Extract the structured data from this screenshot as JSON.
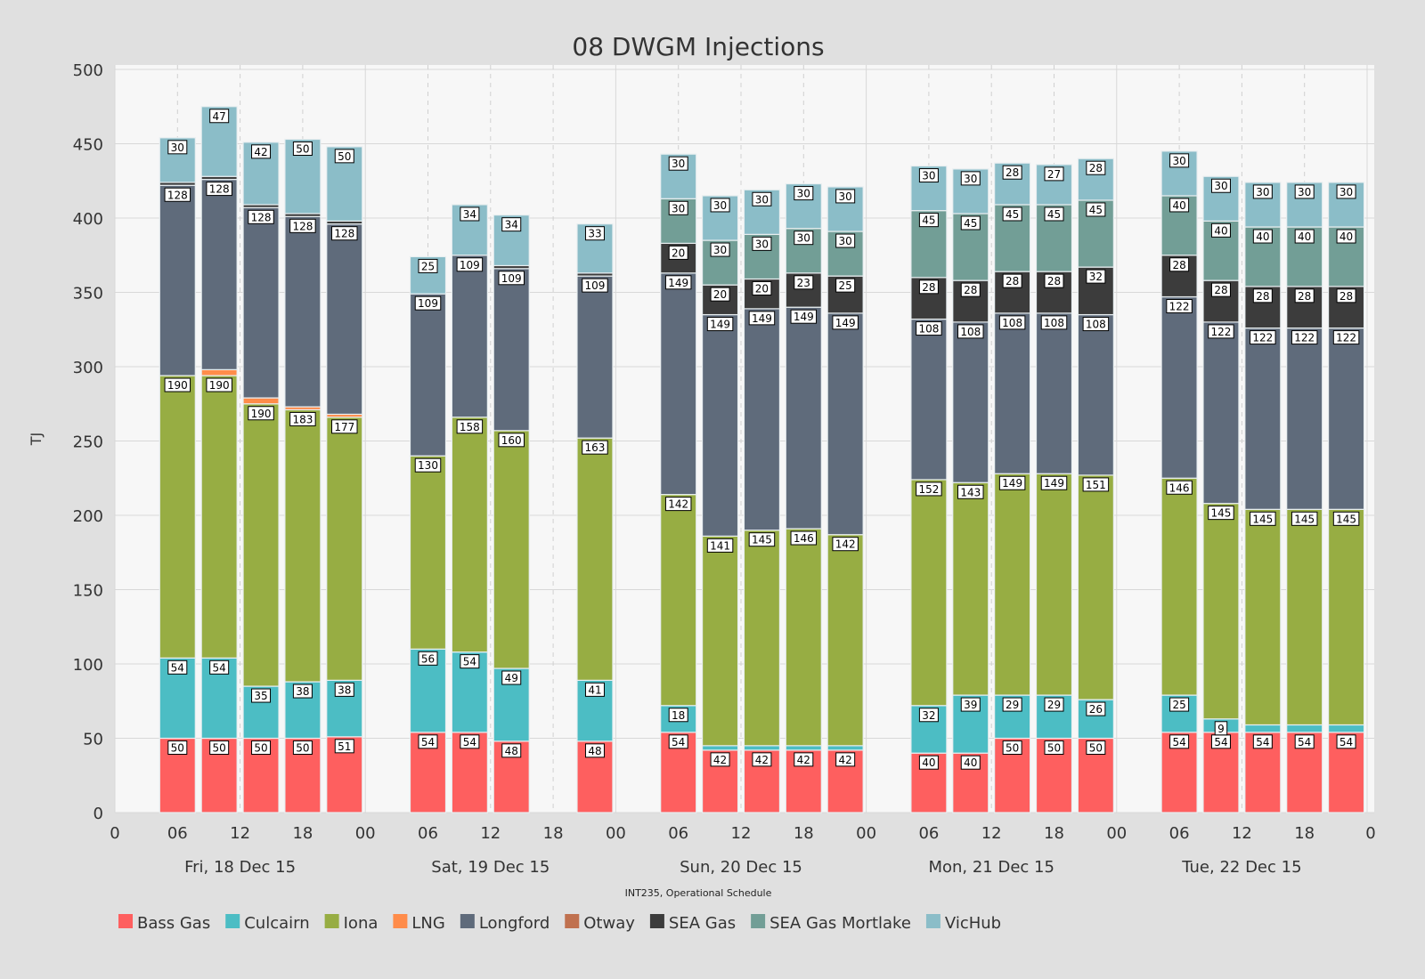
{
  "chart_data": {
    "type": "bar",
    "stacked": true,
    "title": "08 DWGM Injections",
    "ylabel": "TJ",
    "caption": "INT235, Operational Schedule",
    "ylim": [
      0,
      500
    ],
    "yticks": [
      0,
      50,
      100,
      150,
      200,
      250,
      300,
      350,
      400,
      450,
      500
    ],
    "xlim": [
      "2015-12-18 00:00",
      "2015-12-23 00:00"
    ],
    "xtick_labels": [
      "0",
      "06",
      "12",
      "18",
      "00",
      "06",
      "12",
      "18",
      "00",
      "06",
      "12",
      "18",
      "00",
      "06",
      "12",
      "18",
      "00",
      "06",
      "12",
      "18",
      "0"
    ],
    "day_labels": [
      "Fri, 18 Dec 15",
      "Sat, 19 Dec 15",
      "Sun, 20 Dec 15",
      "Mon, 21 Dec 15",
      "Tue, 22 Dec 15"
    ],
    "grid": true,
    "legend_position": "bottom-left",
    "x": [
      "2015-12-18 06:00",
      "2015-12-18 10:00",
      "2015-12-18 14:00",
      "2015-12-18 18:00",
      "2015-12-18 22:00",
      "2015-12-19 06:00",
      "2015-12-19 10:00",
      "2015-12-19 14:00",
      "2015-12-19 22:00",
      "2015-12-20 06:00",
      "2015-12-20 10:00",
      "2015-12-20 14:00",
      "2015-12-20 18:00",
      "2015-12-20 22:00",
      "2015-12-21 06:00",
      "2015-12-21 10:00",
      "2015-12-21 14:00",
      "2015-12-21 18:00",
      "2015-12-21 22:00",
      "2015-12-22 06:00",
      "2015-12-22 10:00",
      "2015-12-22 14:00",
      "2015-12-22 18:00",
      "2015-12-22 22:00"
    ],
    "series": [
      {
        "name": "Bass Gas",
        "color": "#fe5f5f",
        "values": [
          50,
          50,
          50,
          50,
          51,
          54,
          54,
          48,
          48,
          54,
          42,
          42,
          42,
          42,
          40,
          40,
          50,
          50,
          50,
          54,
          54,
          54,
          54,
          54
        ]
      },
      {
        "name": "Culcairn",
        "color": "#4cbdc4",
        "values": [
          54,
          54,
          35,
          38,
          38,
          56,
          54,
          49,
          41,
          18,
          3,
          3,
          3,
          3,
          32,
          39,
          29,
          29,
          26,
          25,
          9,
          5,
          5,
          5
        ]
      },
      {
        "name": "Iona",
        "color": "#97ad43",
        "values": [
          190,
          190,
          190,
          183,
          177,
          130,
          158,
          160,
          163,
          142,
          141,
          145,
          146,
          142,
          152,
          143,
          149,
          149,
          151,
          146,
          145,
          145,
          145,
          145
        ]
      },
      {
        "name": "LNG",
        "color": "#ff8c4a",
        "values": [
          0,
          4,
          4,
          2,
          2,
          0,
          0,
          0,
          0,
          0,
          0,
          0,
          0,
          0,
          0,
          0,
          0,
          0,
          0,
          0,
          0,
          0,
          0,
          0
        ]
      },
      {
        "name": "Longford",
        "color": "#5f6b7b",
        "values": [
          128,
          128,
          128,
          128,
          128,
          109,
          109,
          109,
          109,
          149,
          149,
          149,
          149,
          149,
          108,
          108,
          108,
          108,
          108,
          122,
          122,
          122,
          122,
          122
        ]
      },
      {
        "name": "Otway",
        "color": "#c0714f",
        "values": [
          0,
          0,
          0,
          0,
          0,
          0,
          0,
          0,
          0,
          0,
          0,
          0,
          0,
          0,
          0,
          0,
          0,
          0,
          0,
          0,
          0,
          0,
          0,
          0
        ]
      },
      {
        "name": "SEA Gas",
        "color": "#3c3c3c",
        "values": [
          2,
          2,
          2,
          2,
          2,
          0,
          0,
          2,
          2,
          20,
          20,
          20,
          23,
          25,
          28,
          28,
          28,
          28,
          32,
          28,
          28,
          28,
          28,
          28
        ]
      },
      {
        "name": "SEA Gas Mortlake",
        "color": "#729e96",
        "values": [
          0,
          0,
          0,
          0,
          0,
          0,
          0,
          0,
          0,
          30,
          30,
          30,
          30,
          30,
          45,
          45,
          45,
          45,
          45,
          40,
          40,
          40,
          40,
          40
        ]
      },
      {
        "name": "VicHub",
        "color": "#8bbdc8",
        "values": [
          30,
          47,
          42,
          50,
          50,
          25,
          34,
          34,
          33,
          30,
          30,
          30,
          30,
          30,
          30,
          30,
          28,
          27,
          28,
          30,
          30,
          30,
          30,
          30
        ]
      }
    ]
  }
}
